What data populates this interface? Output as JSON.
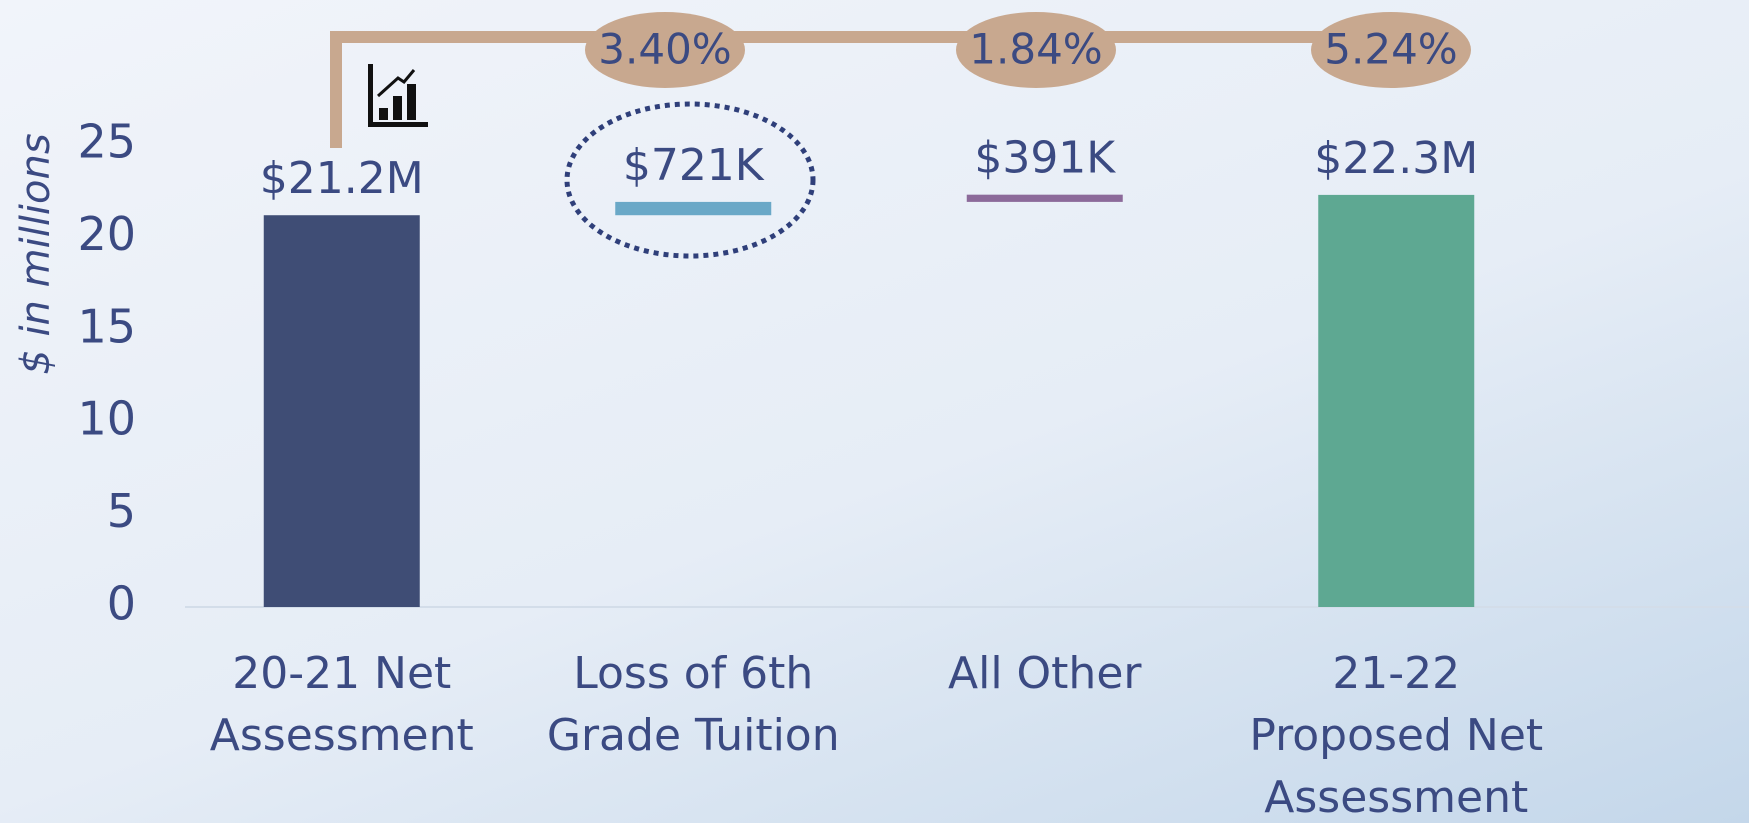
{
  "chart_data": {
    "type": "waterfall",
    "y_label": "$ in millions",
    "categories": [
      "20-21 Net Assessment",
      "Loss of 6th Grade Tuition",
      "All Other",
      "21-22 Proposed Net Assessment"
    ],
    "values": [
      21.2,
      0.721,
      0.391,
      22.3
    ],
    "value_labels": [
      "$21.2M",
      "$721K",
      "$391K",
      "$22.3M"
    ],
    "measure": [
      "absolute",
      "relative",
      "relative",
      "total"
    ],
    "colors": [
      "#3f4d75",
      "#6aa8c7",
      "#8c6a9a",
      "#5ea892"
    ],
    "annotations": [
      "3.40%",
      "1.84%",
      "5.24%"
    ],
    "ylim": [
      0,
      25
    ],
    "yticks": [
      0,
      5,
      10,
      15,
      20,
      25
    ],
    "grid": false
  }
}
